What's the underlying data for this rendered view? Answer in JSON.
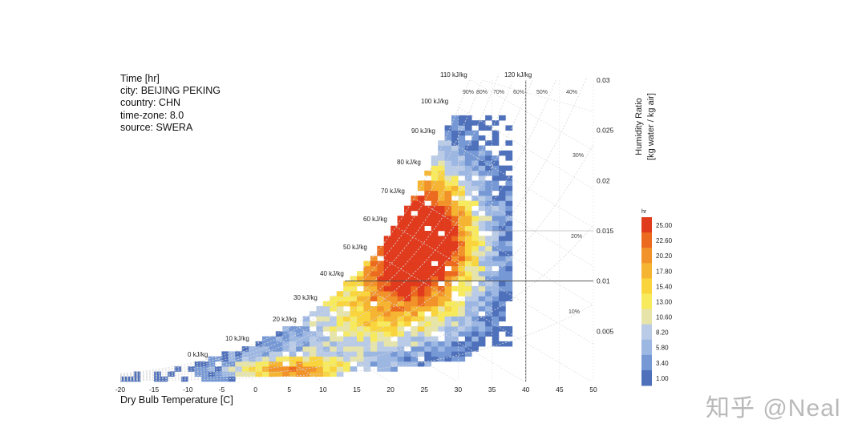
{
  "info": {
    "title": "Time [hr]",
    "city": "city: BEIJING PEKING",
    "country": "country: CHN",
    "timezone": "time-zone: 8.0",
    "source": "source: SWERA"
  },
  "watermark": "知乎 @Neal",
  "chart_data": {
    "type": "heatmap",
    "title": "Time [hr]",
    "xlabel": "Dry Bulb Temperature [C]",
    "ylabel": "Humidity Ratio [kg water / kg air]",
    "xlim": [
      -20,
      50
    ],
    "ylim": [
      0,
      0.03
    ],
    "x_ticks": [
      -20,
      -15,
      -10,
      -5,
      0,
      5,
      10,
      15,
      20,
      25,
      30,
      35,
      40,
      45,
      50
    ],
    "y_ticks": [
      0.005,
      0.01,
      0.015,
      0.02,
      0.025,
      0.03
    ],
    "x_tick_labels": [
      "-20",
      "-15",
      "-10",
      "-5",
      "0",
      "5",
      "10",
      "15",
      "20",
      "25",
      "30",
      "35",
      "40",
      "45",
      "50"
    ],
    "y_tick_labels": [
      "0.005",
      "0.01",
      "0.015",
      "0.02",
      "0.025",
      "0.03"
    ],
    "enthalpy_lines": [
      0,
      10,
      20,
      30,
      40,
      50,
      60,
      70,
      80,
      90,
      100,
      110,
      120
    ],
    "enthalpy_labels": [
      "0 kJ/kg",
      "10 kJ/kg",
      "20 kJ/kg",
      "30 kJ/kg",
      "40 kJ/kg",
      "50 kJ/kg",
      "60 kJ/kg",
      "70 kJ/kg",
      "80 kJ/kg",
      "90 kJ/kg",
      "100 kJ/kg",
      "110 kJ/kg",
      "120 kJ/kg"
    ],
    "rh_curves": [
      10,
      20,
      30,
      40,
      50,
      60,
      70,
      80,
      90
    ],
    "rh_labels": [
      "90%",
      "80%",
      "70%",
      "60%",
      "50%",
      "40%",
      "30%",
      "20%",
      "10%"
    ],
    "crosshair": {
      "temperature": 40,
      "humidity_ratio": 0.01
    },
    "colorbar": {
      "unit": "hr",
      "values": [
        "25.00",
        "22.60",
        "20.20",
        "17.80",
        "15.40",
        "13.00",
        "10.60",
        "8.20",
        "5.80",
        "3.40",
        "1.00"
      ],
      "colors": [
        "#e13b1e",
        "#ec6a1f",
        "#f1922a",
        "#f5b432",
        "#f9d43d",
        "#f7ea5d",
        "#e6e4a8",
        "#b9cbe6",
        "#9db7e3",
        "#7699d6",
        "#4f71bb"
      ]
    },
    "grid_resolution": {
      "dT": 1,
      "dW": 0.0005
    }
  }
}
